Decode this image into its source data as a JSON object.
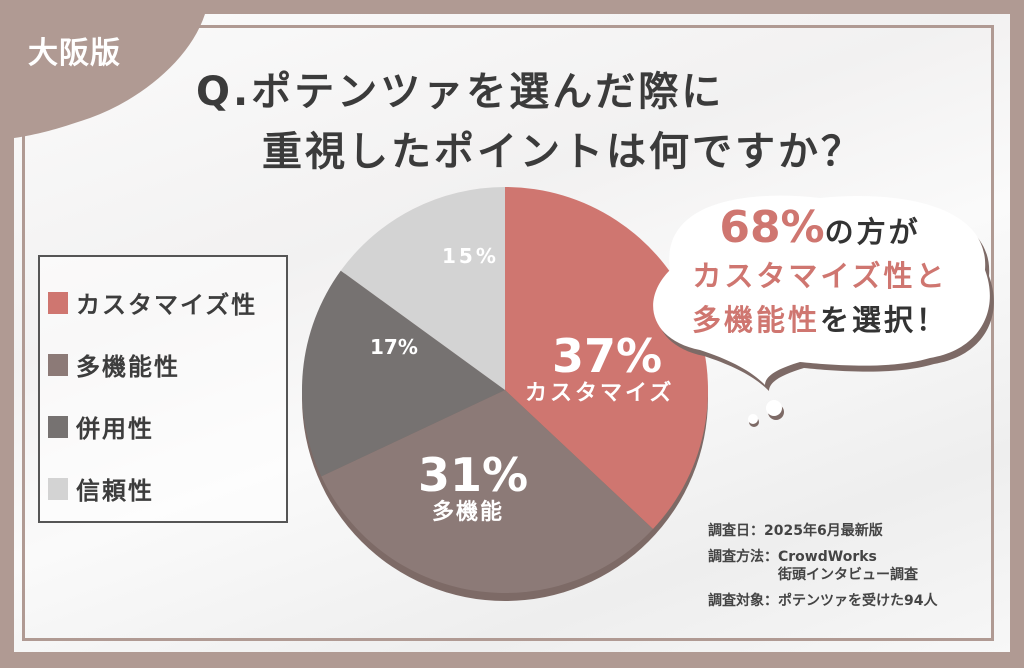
{
  "badge": "大阪版",
  "title": {
    "line1": "Q.ポテンツァを選んだ際に",
    "line2": "重視したポイントは何ですか？"
  },
  "colors": {
    "frame": "#b09a93",
    "customize": "#cf7670",
    "multifunction": "#8c7a77",
    "combination": "#767271",
    "reliability": "#d3d3d3",
    "accent_text": "#cf7670"
  },
  "legend": {
    "items": [
      {
        "label": "カスタマイズ性",
        "color": "#cf7670"
      },
      {
        "label": "多機能性",
        "color": "#8c7a77"
      },
      {
        "label": "併用性",
        "color": "#767271"
      },
      {
        "label": "信頼性",
        "color": "#d3d3d3"
      }
    ]
  },
  "pie_labels": {
    "customize_pct": "37%",
    "customize_name": "カスタマイズ",
    "multifunction_pct": "31%",
    "multifunction_name": "多機能",
    "combination_pct": "17%",
    "reliability_pct": "15%"
  },
  "callout": {
    "pct": "68%",
    "line1_rest": "の方が",
    "line2": "カスタマイズ性と",
    "line3_accent": "多機能性",
    "line3_rest": "を選択！"
  },
  "survey": {
    "date_key": "調査日：",
    "date_val": "2025年6月最新版",
    "method_key": "調査方法：",
    "method_val1": "CrowdWorks",
    "method_val2": "街頭インタビュー調査",
    "target_key": "調査対象：",
    "target_val": "ポテンツァを受けた94人"
  },
  "chart_data": {
    "type": "pie",
    "title": "Q.ポテンツァを選んだ際に重視したポイントは何ですか？",
    "categories": [
      "カスタマイズ性",
      "多機能性",
      "併用性",
      "信頼性"
    ],
    "values": [
      37,
      31,
      17,
      15
    ],
    "unit": "%",
    "colors": [
      "#cf7670",
      "#8c7a77",
      "#767271",
      "#d3d3d3"
    ],
    "start_angle": "12 o'clock, clockwise",
    "legend_position": "left",
    "annotations": [
      "68%の方がカスタマイズ性と多機能性を選択！"
    ],
    "notes": [
      "調査日：2025年6月最新版",
      "調査方法：CrowdWorks 街頭インタビュー調査",
      "調査対象：ポテンツァを受けた94人"
    ]
  }
}
